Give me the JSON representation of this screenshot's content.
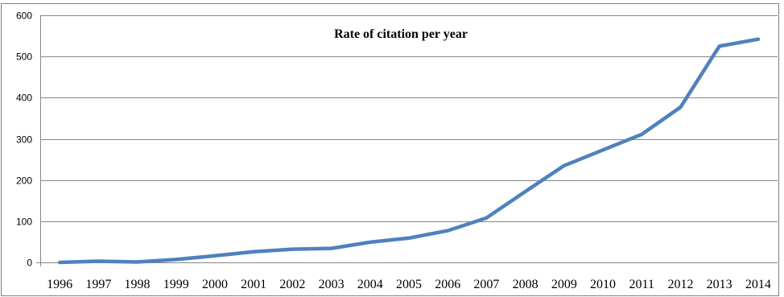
{
  "chart_data": {
    "type": "line",
    "title": "Rate of citation per year",
    "xlabel": "",
    "ylabel": "",
    "ylim": [
      0,
      600
    ],
    "yticks": [
      0,
      100,
      200,
      300,
      400,
      500,
      600
    ],
    "grid": true,
    "legend": "none",
    "line_color": "#4F81BD",
    "categories": [
      "1996",
      "1997",
      "1998",
      "1999",
      "2000",
      "2001",
      "2002",
      "2003",
      "2004",
      "2005",
      "2006",
      "2007",
      "2008",
      "2009",
      "2010",
      "2011",
      "2012",
      "2013",
      "2014"
    ],
    "series": [
      {
        "values": [
          0,
          3,
          1,
          7,
          16,
          26,
          32,
          34,
          49,
          59,
          77,
          108,
          172,
          235,
          273,
          311,
          377,
          525,
          542
        ]
      }
    ]
  }
}
